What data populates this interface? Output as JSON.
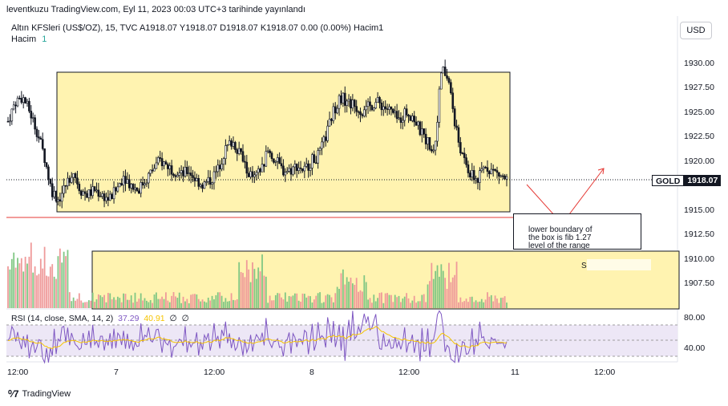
{
  "header": {
    "published": "leventkuzu TradingView.com, Eyl 11, 2023 00:03 UTC+3 tarihinde yayınlandı"
  },
  "legend": {
    "symbol_line": "Altın KFSleri (US$/OZ), 15, TVC  A1918.07  Y1918.07  D1918.07  K1918.07  0.00 (0.00%)  Hacim1",
    "volume_label": "Hacim",
    "volume_value": "1",
    "rsi_label": "RSI (14, close, SMA, 14, 2)",
    "rsi_value": "37.29",
    "rsi_ma_value": "40.91",
    "rsi_extra_1": "∅",
    "rsi_extra_2": "∅"
  },
  "toolbar": {
    "currency": "USD"
  },
  "price_axis": {
    "labels": [
      "1930.00",
      "1927.50",
      "1925.00",
      "1922.50",
      "1920.00",
      "1915.00",
      "1912.50",
      "1910.00",
      "1907.50"
    ],
    "current_symbol": "GOLD",
    "current_price": "1918.07"
  },
  "rsi_axis": {
    "labels": [
      "80.00",
      "40.00"
    ]
  },
  "time_axis": {
    "labels": [
      "12:00",
      "7",
      "12:00",
      "8",
      "12:00",
      "11",
      "12:00"
    ]
  },
  "annotation": {
    "note": [
      "lower boundary of",
      "the box is fib 1.27",
      "level of the range"
    ],
    "volume_marker": "S"
  },
  "footer": {
    "brand": "TradingView"
  },
  "colors": {
    "box_fill": "#fff3b0",
    "rsi_band": "#ede7f6",
    "arrow": "#e53935",
    "candle": "#131722"
  },
  "chart_data": {
    "type": "candlestick",
    "ylim": [
      1904.5,
      1932.0
    ],
    "price_series_approx": [
      1924,
      1926,
      1926.5,
      1925,
      1923,
      1920.5,
      1917,
      1916,
      1917.5,
      1919,
      1917,
      1916.5,
      1917,
      1916.5,
      1916,
      1917,
      1918.5,
      1917.5,
      1917,
      1918,
      1919,
      1920,
      1919.5,
      1919,
      1918.5,
      1919,
      1918,
      1917.5,
      1918,
      1919,
      1921,
      1922,
      1921,
      1919,
      1918,
      1919,
      1921,
      1920,
      1919,
      1919,
      1919.5,
      1919,
      1920,
      1920.5,
      1922.5,
      1925,
      1926.5,
      1926,
      1925.5,
      1925,
      1925.5,
      1926,
      1925.5,
      1925,
      1924,
      1925,
      1924.5,
      1923,
      1922,
      1921,
      1929.5,
      1928,
      1923,
      1920,
      1918.5,
      1918,
      1919.5,
      1919,
      1918.5,
      1918
    ],
    "box": {
      "price_top": 1929.2,
      "price_bottom": 1915.0
    },
    "red_line_price": 1914.3,
    "rsi_levels": [
      70,
      50,
      30
    ]
  }
}
